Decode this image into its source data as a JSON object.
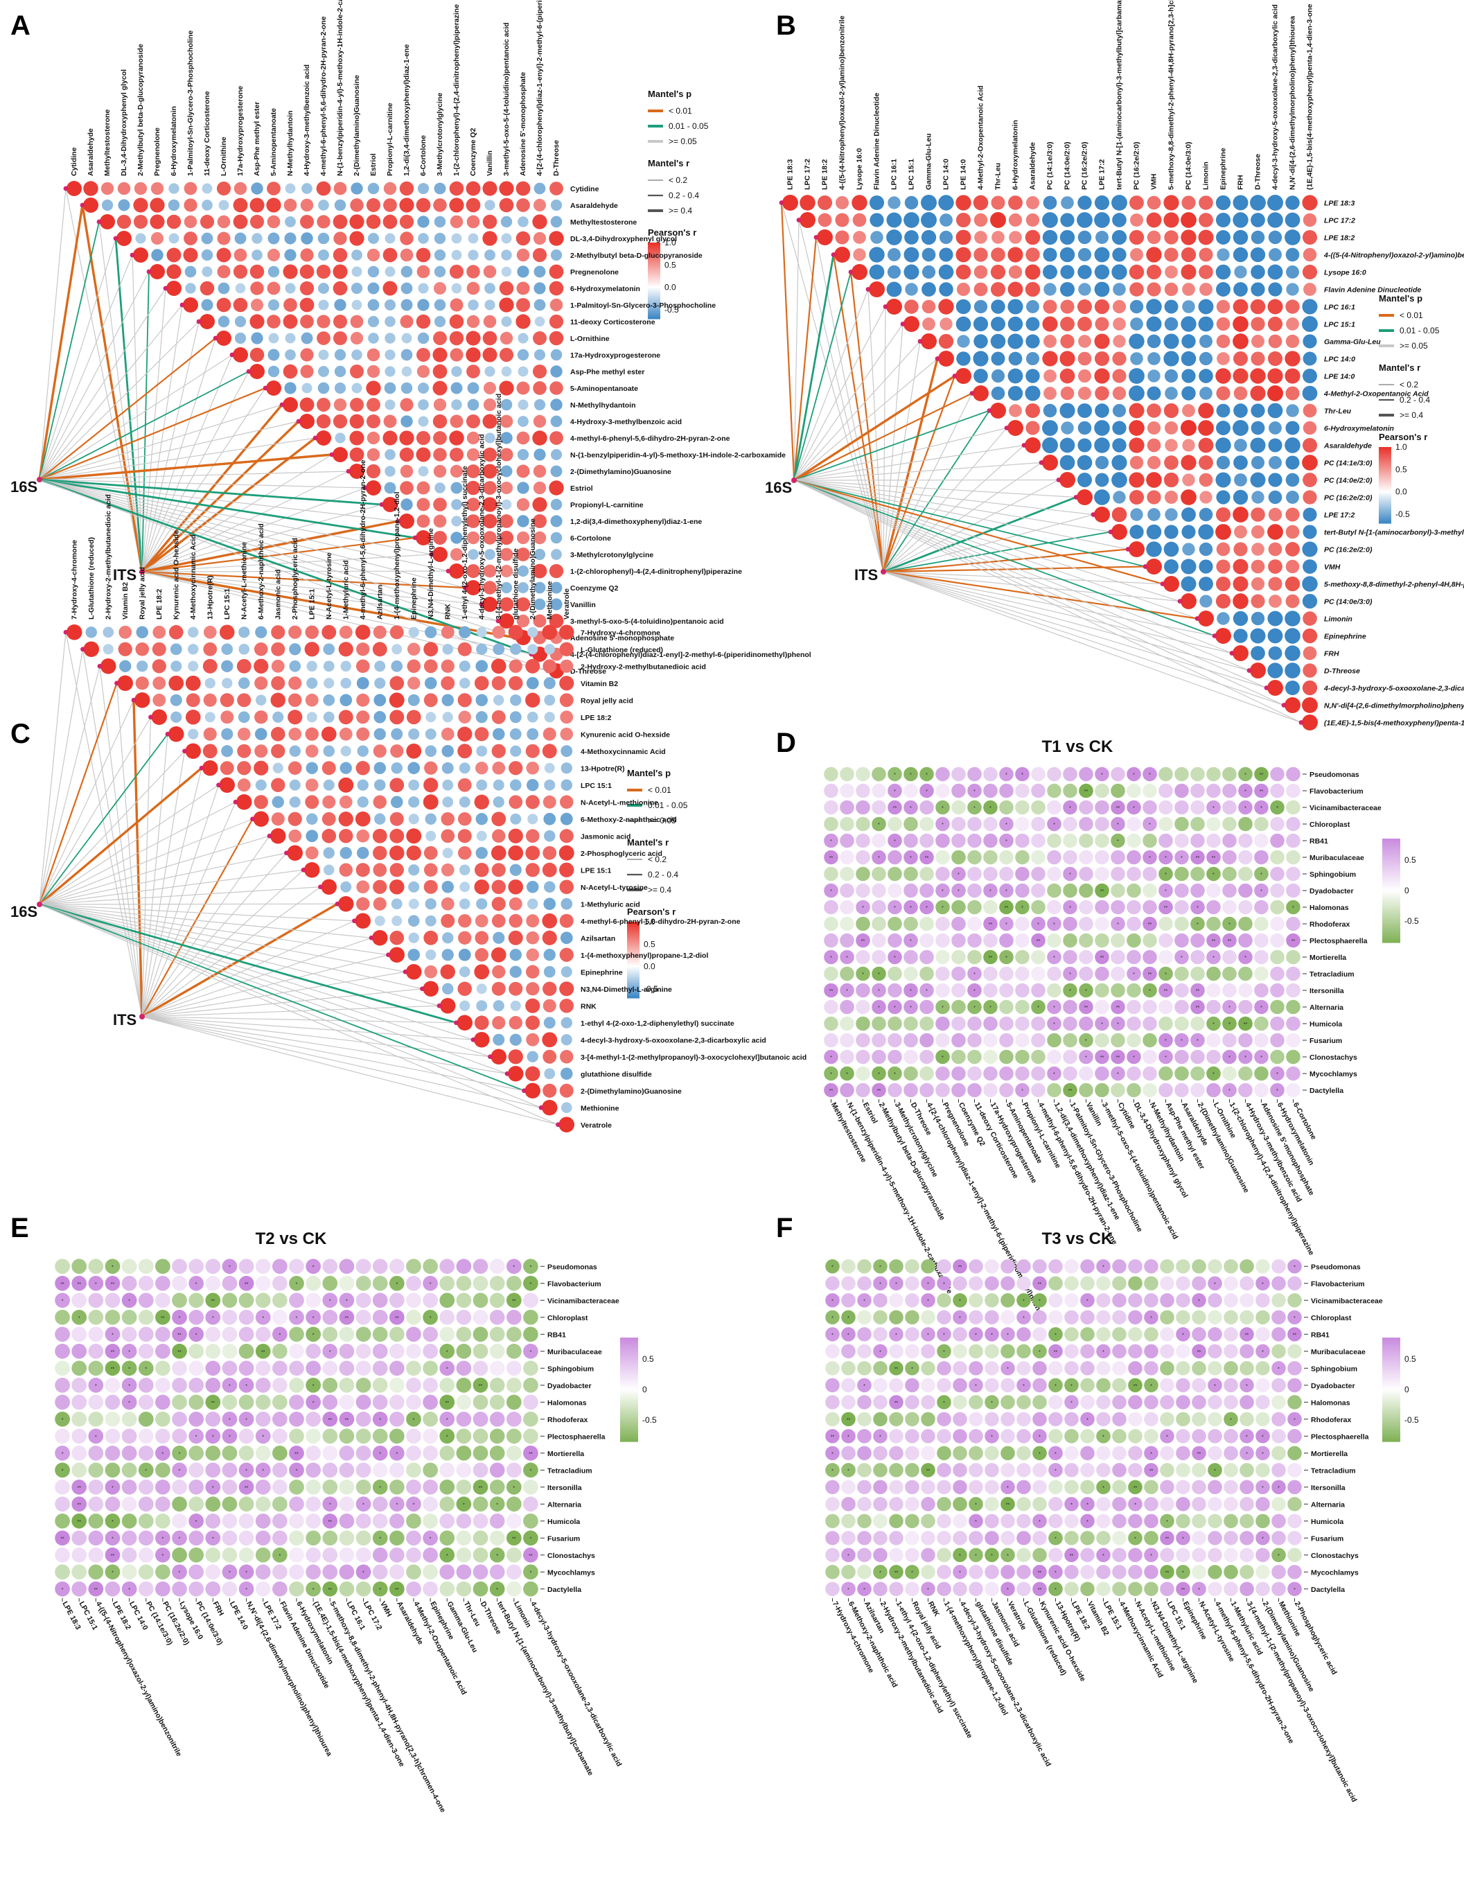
{
  "chart_data": [
    {
      "panel": "A",
      "type": "heatmap",
      "subtype": "correlation-triangle-with-mantel-network",
      "nodes": [
        "16S",
        "ITS"
      ],
      "metabolites": [
        "Cytidine",
        "Asaraldehyde",
        "Methyltestosterone",
        "DL-3,4-Dihydroxyphenyl glycol",
        "2-Methylbutyl beta-D-glucopyranoside",
        "Pregnenolone",
        "6-Hydroxymelatonin",
        "1-Palmitoyl-Sn-Glycero-3-Phosphocholine",
        "11-deoxy Corticosterone",
        "L-Ornithine",
        "17a-Hydroxyprogesterone",
        "Asp-Phe methyl ester",
        "5-Aminopentanoate",
        "N-Methylhydantoin",
        "4-Hydroxy-3-methylbenzoic acid",
        "4-methyl-6-phenyl-5,6-dihydro-2H-pyran-2-one",
        "N-(1-benzylpiperidin-4-yl)-5-methoxy-1H-indole-2-carboxamide",
        "2-(Dimethylamino)Guanosine",
        "Estriol",
        "Propionyl-L-carnitine",
        "1,2-di(3,4-dimethoxyphenyl)diaz-1-ene",
        "6-Cortolone",
        "3-Methylcrotonylglycine",
        "1-(2-chlorophenyl)-4-(2,4-dinitrophenyl)piperazine",
        "Coenzyme Q2",
        "Vanillin",
        "3-methyl-5-oxo-5-(4-toluidino)pentanoic acid",
        "Adenosine 5'-monophosphate",
        "4-[2-(4-chlorophenyl)diaz-1-enyl]-2-methyl-6-(piperidinomethyl)phenol",
        "D-Threose"
      ],
      "legend": {
        "mantel_p_title": "Mantel's p",
        "mantel_p_levels": [
          "< 0.01",
          "0.01 - 0.05",
          ">= 0.05"
        ],
        "mantel_r_title": "Mantel's r",
        "mantel_r_levels": [
          "< 0.2",
          "0.2 - 0.4",
          ">= 0.4"
        ],
        "pearson_title": "Pearson's r",
        "pearson_ticks": [
          "1.0",
          "0.5",
          "0.0",
          "-0.5"
        ]
      }
    },
    {
      "panel": "B",
      "type": "heatmap",
      "subtype": "correlation-triangle-with-mantel-network",
      "nodes": [
        "16S",
        "ITS"
      ],
      "metabolites": [
        "LPE 18:3",
        "LPC 17:2",
        "LPE 18:2",
        "4-((5-(4-Nitrophenyl)oxazol-2-yl)amino)benzonitrile",
        "Lysope 16:0",
        "Flavin Adenine Dinucleotide",
        "LPC 16:1",
        "LPC 15:1",
        "Gamma-Glu-Leu",
        "LPC 14:0",
        "LPE 14:0",
        "4-Methyl-2-Oxopentanoic Acid",
        "Thr-Leu",
        "6-Hydroxymelatonin",
        "Asaraldehyde",
        "PC (14:1e/3:0)",
        "PC (14:0e/2:0)",
        "PC (16:2e/2:0)",
        "LPE 17:2",
        "tert-Butyl N-[1-(aminocarbonyl)-3-methylbutyl]carbamate",
        "PC (16:2e/2:0)",
        "VMH",
        "5-methoxy-8,8-dimethyl-2-phenyl-4H,8H-pyrano[2,3-h]chromen-4-one",
        "PC (14:0e/3:0)",
        "Limonin",
        "Epinephrine",
        "FRH",
        "D-Threose",
        "4-decyl-3-hydroxy-5-oxooxolane-2,3-dicarboxylic acid",
        "N,N'-di[4-(2,6-dimethylmorpholino)phenyl]thiourea",
        "(1E,4E)-1,5-bis(4-methoxyphenyl)penta-1,4-dien-3-one"
      ],
      "legend": {
        "mantel_p_title": "Mantel's p",
        "mantel_p_levels": [
          "< 0.01",
          "0.01 - 0.05",
          ">= 0.05"
        ],
        "mantel_r_title": "Mantel's r",
        "mantel_r_levels": [
          "< 0.2",
          "0.2 - 0.4",
          ">= 0.4"
        ],
        "pearson_title": "Pearson's r",
        "pearson_ticks": [
          "1.0",
          "0.5",
          "0.0",
          "-0.5"
        ]
      }
    },
    {
      "panel": "C",
      "type": "heatmap",
      "subtype": "correlation-triangle-with-mantel-network",
      "nodes": [
        "16S",
        "ITS"
      ],
      "metabolites": [
        "7-Hydroxy-4-chromone",
        "L-Glutathione (reduced)",
        "2-Hydroxy-2-methylbutanedioic acid",
        "Vitamin B2",
        "Royal jelly acid",
        "LPE 18:2",
        "Kynurenic acid O-hexside",
        "4-Methoxycinnamic Acid",
        "13-Hpotre(R)",
        "LPC 15:1",
        "N-Acetyl-L-methionine",
        "6-Methoxy-2-naphthoic acid",
        "Jasmonic acid",
        "2-Phosphoglyceric acid",
        "LPE 15:1",
        "N-Acetyl-L-tyrosine",
        "1-Methyluric acid",
        "4-methyl-6-phenyl-5,6-dihydro-2H-pyran-2-one",
        "Azilsartan",
        "1-(4-methoxyphenyl)propane-1,2-diol",
        "Epinephrine",
        "N3,N4-Dimethyl-L-arginine",
        "RNK",
        "1-ethyl 4-(2-oxo-1,2-diphenylethyl) succinate",
        "4-decyl-3-hydroxy-5-oxooxolane-2,3-dicarboxylic acid",
        "3-[4-methyl-1-(2-methylpropanoyl)-3-oxocyclohexyl]butanoic acid",
        "glutathione disulfide",
        "2-(Dimethylamino)Guanosine",
        "Methionine",
        "Veratrole"
      ],
      "legend": {
        "mantel_p_title": "Mantel's p",
        "mantel_p_levels": [
          "< 0.01",
          "0.01 - 0.05",
          ">= 0.05"
        ],
        "mantel_r_title": "Mantel's r",
        "mantel_r_levels": [
          "< 0.2",
          "0.2 - 0.4",
          ">= 0.4"
        ],
        "pearson_title": "Pearson's r",
        "pearson_ticks": [
          "1.0",
          "0.5",
          "0.0",
          "-0.5"
        ]
      }
    },
    {
      "panel": "D",
      "type": "heatmap",
      "title": "T1 vs CK",
      "taxa": [
        "Pseudomonas",
        "Flavobacterium",
        "Vicinamibacteraceae",
        "Chloroplast",
        "RB41",
        "Muribaculaceae",
        "Sphingobium",
        "Dyadobacter",
        "Halomonas",
        "Rhodoferax",
        "Plectosphaerella",
        "Mortierella",
        "Tetracladium",
        "Itersonilla",
        "Alternaria",
        "Humicola",
        "Fusarium",
        "Clonostachys",
        "Mycochlamys",
        "Dactylella"
      ],
      "metabolites": [
        "Methyltestosterone",
        "N-(1-benzylpiperidin-4-yl)-5-methoxy-1H-indole-2-carboxamide",
        "Estriol",
        "2-Methylbutyl beta-D-glucopyranoside",
        "3-Methylcrotonylglycine",
        "D-Threose",
        "4-[2-(4-chlorophenyl)diaz-1-enyl]-2-methyl-6-(piperidinomethyl)phenol",
        "Pregnenolone",
        "Coenzyme Q2",
        "11-deoxy Corticosterone",
        "17a-Hydroxyprogesterone",
        "5-Aminopentanoate",
        "Propionyl-L-carnitine",
        "4-methyl-6-phenyl-5,6-dihydro-2H-pyran-2-one",
        "1,2-di(3,4-dimethoxyphenyl)diaz-1-ene",
        "1-Palmitoyl-Sn-Glycero-3-Phosphocholine",
        "Vanillin",
        "3-methyl-5-oxo-5-(4-toluidino)pentanoic acid",
        "Cytidine",
        "DL-3,4-Dihydroxyphenyl glycol",
        "N-Methylhydantoin",
        "Asp-Phe methyl ester",
        "Asaraldehyde",
        "2-(Dimethylamino)Guanosine",
        "L-Ornithine",
        "1-(2-chlorophenyl)-4-(2,4-dinitrophenyl)piperazine",
        "4-Hydroxy-3-methylbenzoic acid",
        "Adenosine 5'-monophosphate",
        "6-Hydroxymelatonin",
        "6-Cortolone"
      ],
      "color_ticks": [
        "0.5",
        "0",
        "-0.5"
      ]
    },
    {
      "panel": "E",
      "type": "heatmap",
      "title": "T2 vs CK",
      "taxa": [
        "Pseudomonas",
        "Flavobacterium",
        "Vicinamibacteraceae",
        "Chloroplast",
        "RB41",
        "Muribaculaceae",
        "Sphingobium",
        "Dyadobacter",
        "Halomonas",
        "Rhodoferax",
        "Plectosphaerella",
        "Mortierella",
        "Tetracladium",
        "Itersonilla",
        "Alternaria",
        "Humicola",
        "Fusarium",
        "Clonostachys",
        "Mycochlamys",
        "Dactylella"
      ],
      "metabolites": [
        "LPE 18:3",
        "LPC 15:1",
        "4-((5-(4-Nitrophenyl)oxazol-2-yl)amino)benzonitrile",
        "LPE 18:2",
        "LPC 14:0",
        "PC (14:1e/3:0)",
        "PC (16:2e/2:0)",
        "Lysope 16:0",
        "PC (14:0e/3:0)",
        "FRH",
        "LPE 14:0",
        "N,N'-di[4-(2,6-dimethylmorpholino)phenyl]thiourea",
        "LPE 17:2",
        "Flavin Adenine Dinucleotide",
        "6-Hydroxymelatonin",
        "(1E,4E)-1,5-bis(4-methoxyphenyl)penta-1,4-dien-3-one",
        "5-methoxy-8,8-dimethyl-2-phenyl-4H,8H-pyrano[2,3-h]chromen-4-one",
        "LPC 16:1",
        "LPC 17:2",
        "VMH",
        "Asaraldehyde",
        "4-Methyl-2-Oxopentanoic Acid",
        "Epinephrine",
        "Gamma-Glu-Leu",
        "Thr-Leu",
        "D-Threose",
        "tert-Butyl N-[1-(aminocarbonyl)-3-methylbutyl]carbamate",
        "Limonin",
        "4-decyl-3-hydroxy-5-oxooxolane-2,3-dicarboxylic acid"
      ],
      "color_ticks": [
        "0.5",
        "0",
        "-0.5"
      ]
    },
    {
      "panel": "F",
      "type": "heatmap",
      "title": "T3 vs CK",
      "taxa": [
        "Pseudomonas",
        "Flavobacterium",
        "Vicinamibacteraceae",
        "Chloroplast",
        "RB41",
        "Muribaculaceae",
        "Sphingobium",
        "Dyadobacter",
        "Halomonas",
        "Rhodoferax",
        "Plectosphaerella",
        "Mortierella",
        "Tetracladium",
        "Itersonilla",
        "Alternaria",
        "Humicola",
        "Fusarium",
        "Clonostachys",
        "Mycochlamys",
        "Dactylella"
      ],
      "metabolites": [
        "7-Hydroxy-4-chromone",
        "6-Methoxy-2-naphthoic acid",
        "Azilsartan",
        "2-Hydroxy-2-methylbutanedioic acid",
        "1-ethyl 4-(2-oxo-1,2-diphenylethyl) succinate",
        "Royal jelly acid",
        "RNK",
        "1-(4-methoxyphenyl)propane-1,2-diol",
        "4-decyl-3-hydroxy-5-oxooxolane-2,3-dicarboxylic acid",
        "glutathione disulfide",
        "Jasmonic acid",
        "Veratrole",
        "L-Glutathione (reduced)",
        "Kynurenic acid O-hexside",
        "13-Hpotre(R)",
        "LPE 18:2",
        "Vitamin B2",
        "LPE 15:1",
        "4-Methoxycinnamic Acid",
        "N-Acetyl-L-methionine",
        "N3,N4-Dimethyl-L-arginine",
        "LPC 15:1",
        "Epinephrine",
        "N-Acetyl-L-tyrosine",
        "4-methyl-6-phenyl-5,6-dihydro-2H-pyran-2-one",
        "1-Methyluric acid",
        "3-[4-methyl-1-(2-methylpropanoyl)-3-oxocyclohexyl]butanoic acid",
        "2-(Dimethylamino)Guanosine",
        "Methionine",
        "2-Phosphoglyceric acid"
      ],
      "color_ticks": [
        "0.5",
        "0",
        "-0.5"
      ]
    }
  ],
  "colors": {
    "red": "#e8342c",
    "blue": "#3b86c4",
    "orange": "#d96a1c",
    "green": "#1e9e7a",
    "gray": "#c8c8c8",
    "purple": "#c685dc",
    "leaf_green": "#79ad4c",
    "node_pink": "#d4246a"
  }
}
